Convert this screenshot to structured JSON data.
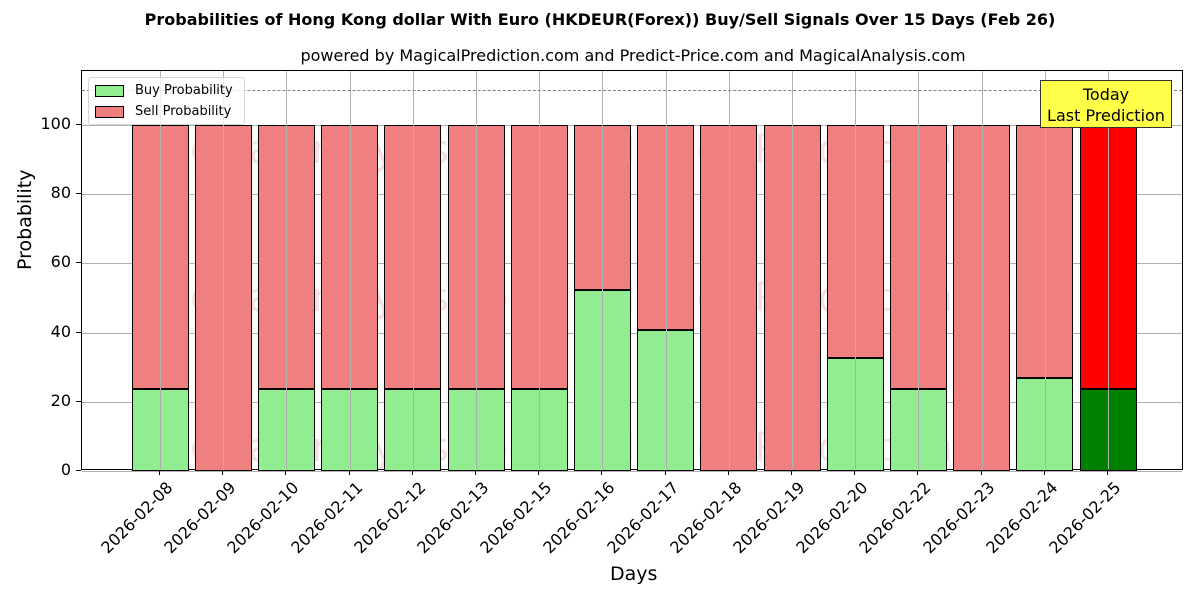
{
  "chart_data": {
    "type": "bar",
    "stacked": true,
    "title": "Probabilities of Hong Kong dollar With Euro (HKDEUR(Forex)) Buy/Sell Signals Over 15 Days (Feb 26)",
    "subtitle": "powered by MagicalPrediction.com and Predict-Price.com and MagicalAnalysis.com",
    "xlabel": "Days",
    "ylabel": "Probability",
    "ylim": [
      0,
      115
    ],
    "yticks": [
      0,
      20,
      40,
      60,
      80,
      100
    ],
    "grid": true,
    "legend_position": "upper left",
    "categories": [
      "2026-02-08",
      "2026-02-09",
      "2026-02-10",
      "2026-02-11",
      "2026-02-12",
      "2026-02-13",
      "2026-02-15",
      "2026-02-16",
      "2026-02-17",
      "2026-02-18",
      "2026-02-19",
      "2026-02-20",
      "2026-02-22",
      "2026-02-23",
      "2026-02-24",
      "2026-02-25"
    ],
    "series": [
      {
        "name": "Buy Probability",
        "color": "#90ee90",
        "values": [
          23.7,
          0,
          23.7,
          23.7,
          23.7,
          23.7,
          23.7,
          52.3,
          40.8,
          0,
          0,
          32.7,
          23.7,
          0,
          26.9,
          23.7
        ]
      },
      {
        "name": "Sell Probability",
        "color": "#f08080",
        "values": [
          76.3,
          100,
          76.3,
          76.3,
          76.3,
          76.3,
          76.3,
          47.7,
          59.2,
          100,
          100,
          67.3,
          76.3,
          100,
          73.1,
          76.3
        ]
      }
    ],
    "highlight": {
      "index": 15,
      "buy_color": "#008000",
      "sell_color": "#ff0000"
    },
    "reference_line": {
      "y": 110,
      "style": "dashed",
      "color": "#808080"
    },
    "annotation": {
      "text_line1": "Today",
      "text_line2": "Last Prediction",
      "background": "#ffff4a"
    },
    "watermarks": [
      "MagicalAnalysis.com",
      "MagicalPrediction.com"
    ]
  },
  "legend": {
    "buy_label": "Buy Probability",
    "sell_label": "Sell Probability"
  }
}
